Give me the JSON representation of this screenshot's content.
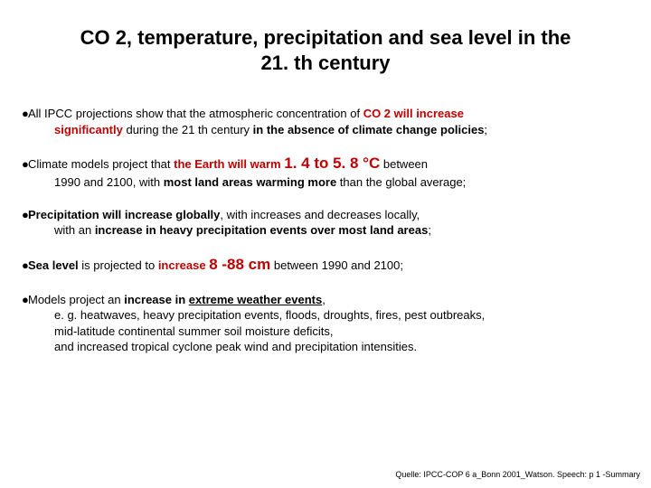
{
  "colors": {
    "emph": "#c00000",
    "text": "#000000",
    "bg": "#ffffff"
  },
  "fonts": {
    "title_size": 22,
    "body_size": 13,
    "big_size": 17,
    "source_size": 9,
    "family": "Arial"
  },
  "title_l1": "CO 2, temperature, precipitation and sea level in the",
  "title_l2": "21. th century",
  "b1_a": "All IPCC projections show that the atmospheric concentration of ",
  "b1_red": "CO 2 will increase",
  "b1_b1": "significantly",
  "b1_b2": " during the 21 th century ",
  "b1_b3": "in the absence of climate change policies",
  "b1_b4": ";",
  "b2_a": "Climate models project that ",
  "b2_red1": "the Earth will warm",
  "b2_sp": " ",
  "b2_red2": "1. 4 to 5. 8 °C",
  "b2_b": " between",
  "b2_c1": "1990 and 2100, with ",
  "b2_c2": "most land areas warming more",
  "b2_c3": " than the global average;",
  "b3_a": "Precipitation will increase globally",
  "b3_b": ", with increases and decreases locally,",
  "b3_c1": "with an ",
  "b3_c2": "increase in heavy precipitation events over most land areas",
  "b3_c3": ";",
  "b4_a": "Sea level",
  "b4_b": " is projected to ",
  "b4_c": "increase",
  "b4_sp": " ",
  "b4_d": "8 -88 cm",
  "b4_e": " between 1990 and 2100;",
  "b5_a": "Models project an ",
  "b5_b": "increase in ",
  "b5_c": "extreme weather events",
  "b5_d": ",",
  "b5_e": "e. g. heatwaves, heavy precipitation events, floods, droughts, fires, pest outbreaks,",
  "b5_f": "mid-latitude continental summer soil moisture deficits,",
  "b5_g": "and increased tropical cyclone peak wind and precipitation intensities.",
  "source": "Quelle: IPCC-COP 6 a_Bonn 2001_Watson. Speech: p 1 -Summary"
}
